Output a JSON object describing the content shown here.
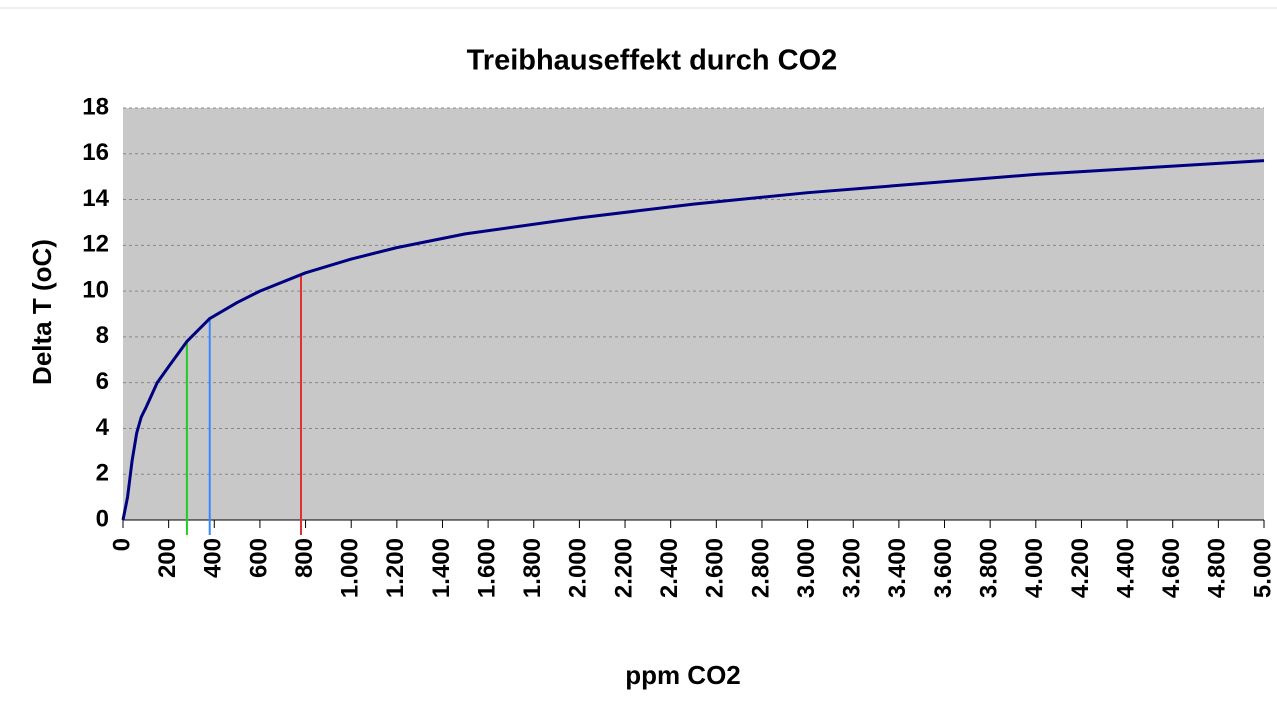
{
  "chart_data": {
    "type": "line",
    "title": "Treibhauseffekt durch CO2",
    "x_label": "ppm CO2",
    "y_label": "Delta T (oC)",
    "x": [
      0,
      20,
      40,
      60,
      80,
      100,
      150,
      200,
      280,
      380,
      500,
      600,
      800,
      1000,
      1200,
      1500,
      2000,
      2500,
      3000,
      3500,
      4000,
      4500,
      5000
    ],
    "series": [
      {
        "color": "#000080",
        "values": [
          0,
          1,
          2.6,
          3.8,
          4.5,
          4.9,
          6.0,
          6.7,
          7.8,
          8.8,
          9.5,
          10.0,
          10.8,
          11.4,
          11.9,
          12.5,
          13.2,
          13.8,
          14.3,
          14.7,
          15.1,
          15.4,
          15.7
        ]
      }
    ],
    "vlines": [
      {
        "x": 280,
        "y": 7.8,
        "color": "#22cc22"
      },
      {
        "x": 380,
        "y": 8.8,
        "color": "#3388ff"
      },
      {
        "x": 780,
        "y": 10.7,
        "color": "#e03030"
      }
    ],
    "xlim": [
      0,
      5000
    ],
    "ylim": [
      0,
      18
    ],
    "yticks": [
      0,
      2,
      4,
      6,
      8,
      10,
      12,
      14,
      16,
      18
    ],
    "xticks": [
      0,
      200,
      400,
      600,
      800,
      {
        "value": 1000,
        "label": "1.000"
      },
      {
        "value": 1200,
        "label": "1.200"
      },
      {
        "value": 1400,
        "label": "1.400"
      },
      {
        "value": 1600,
        "label": "1.600"
      },
      {
        "value": 1800,
        "label": "1.800"
      },
      {
        "value": 2000,
        "label": "2.000"
      },
      {
        "value": 2200,
        "label": "2.200"
      },
      {
        "value": 2400,
        "label": "2.400"
      },
      {
        "value": 2600,
        "label": "2.600"
      },
      {
        "value": 2800,
        "label": "2.800"
      },
      {
        "value": 3000,
        "label": "3.000"
      },
      {
        "value": 3200,
        "label": "3.200"
      },
      {
        "value": 3400,
        "label": "3.400"
      },
      {
        "value": 3600,
        "label": "3.600"
      },
      {
        "value": 3800,
        "label": "3.800"
      },
      {
        "value": 4000,
        "label": "4.000"
      },
      {
        "value": 4200,
        "label": "4.200"
      },
      {
        "value": 4400,
        "label": "4.400"
      },
      {
        "value": 4600,
        "label": "4.600"
      },
      {
        "value": 4800,
        "label": "4.800"
      },
      {
        "value": 5000,
        "label": "5.000"
      }
    ],
    "grid": true,
    "plot_background": "#c8c8c8"
  }
}
